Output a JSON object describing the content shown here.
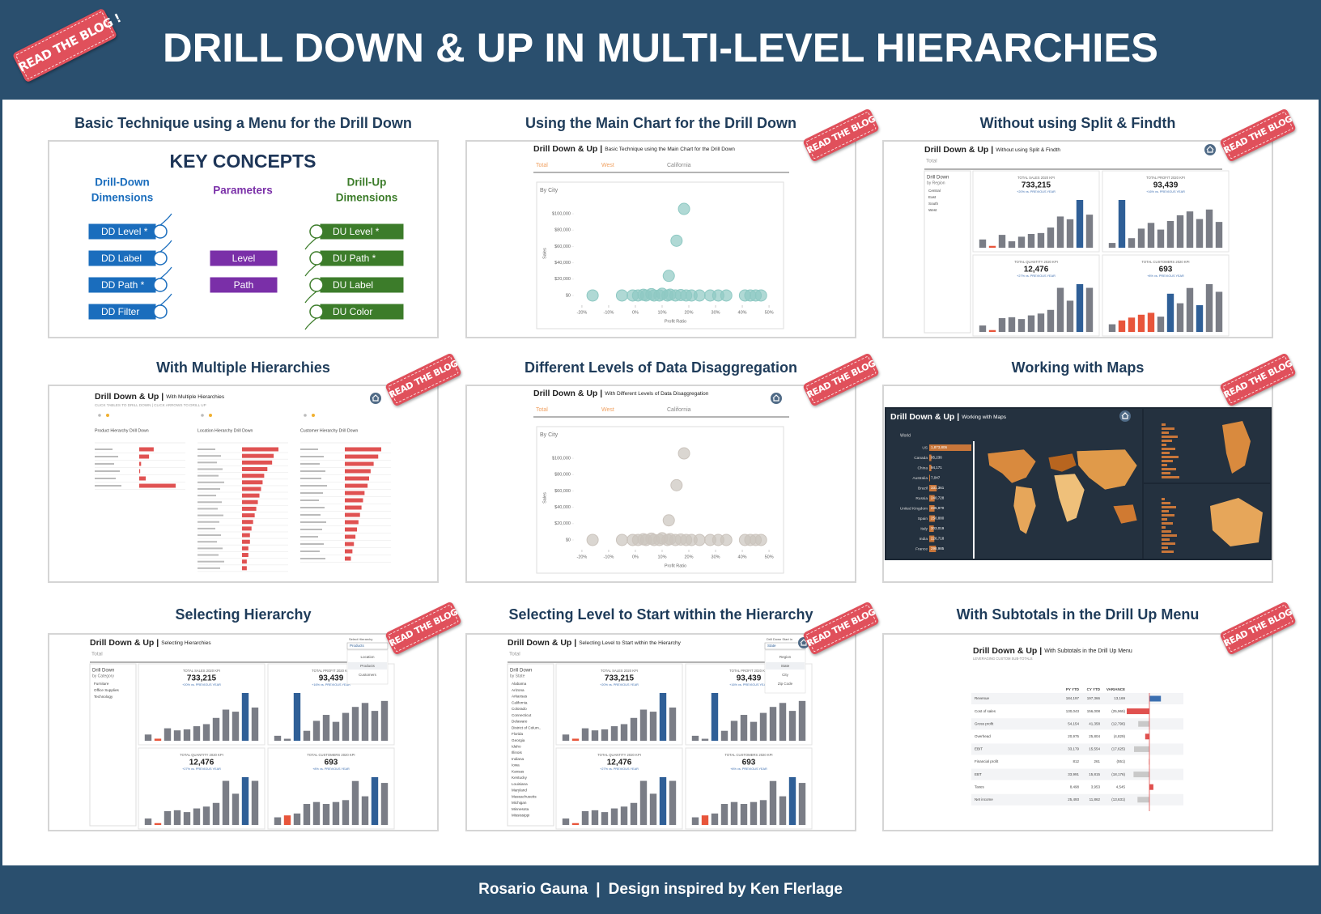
{
  "header": {
    "title": "DRILL DOWN & UP IN MULTI-LEVEL HIERARCHIES",
    "ribbon": "READ THE BLOG !"
  },
  "cards": [
    {
      "title": "Basic Technique using a Menu for the Drill Down",
      "kind": "concepts",
      "concepts": {
        "title": "KEY CONCEPTS",
        "groups": [
          {
            "lines": [
              "Drill-Down",
              "Dimensions"
            ],
            "color": "#1a6dbd",
            "items": [
              "DD Level *",
              "DD Label",
              "DD Path *",
              "DD Filter"
            ]
          },
          {
            "lines": [
              "Parameters"
            ],
            "color": "#7a2fa8",
            "items": [
              "Level",
              "Path"
            ]
          },
          {
            "lines": [
              "Drill-Up",
              "Dimensions"
            ],
            "color": "#3c7c2a",
            "items": [
              "DU Level *",
              "DU Path *",
              "DU Label",
              "DU Color"
            ]
          }
        ]
      }
    },
    {
      "title": "Using the Main Chart for the Drill Down",
      "ribbon": "READ THE BLOG !",
      "kind": "scatter",
      "home": false,
      "heading": "Drill Down & Up |",
      "subheading": "Basic Technique using the Main Chart for the Drill Down",
      "tabs": [
        "Total",
        "West",
        "California"
      ],
      "chart_data": {
        "type": "scatter",
        "title": "By City",
        "xlabel": "Profit Ratio",
        "ylabel": "Sales",
        "color": "#8ec9c3",
        "x": [
          18.2,
          15.4,
          12.5,
          -16,
          -5,
          -1,
          1,
          3,
          4,
          6,
          7,
          9,
          10,
          12,
          13,
          15,
          17,
          19,
          21,
          24,
          28,
          31,
          34,
          41,
          43,
          45,
          47
        ],
        "y": [
          106000,
          67000,
          24000,
          0,
          0,
          0,
          0,
          800,
          0,
          1500,
          0,
          0,
          2000,
          0,
          1000,
          0,
          500,
          0,
          0,
          0,
          0,
          0,
          0,
          0,
          0,
          0,
          0
        ],
        "xlim": [
          -23,
          53
        ],
        "ylim": [
          -6000,
          112000
        ],
        "xticks": [
          {
            "value": -20,
            "label": "-20%"
          },
          {
            "value": -10,
            "label": "-10%"
          },
          {
            "value": 0,
            "label": "0%"
          },
          {
            "value": 10,
            "label": "10%"
          },
          {
            "value": 20,
            "label": "20%"
          },
          {
            "value": 30,
            "label": "30%"
          },
          {
            "value": 40,
            "label": "40%"
          },
          {
            "value": 50,
            "label": "50%"
          }
        ],
        "yticks": [
          {
            "value": 0,
            "label": "$0"
          },
          {
            "value": 20000,
            "label": "$20,000"
          },
          {
            "value": 40000,
            "label": "$40,000"
          },
          {
            "value": 60000,
            "label": "$60,000"
          },
          {
            "value": 80000,
            "label": "$80,000"
          },
          {
            "value": 100000,
            "label": "$100,000"
          }
        ]
      }
    },
    {
      "title": "Without using Split & Findth",
      "ribbon": "READ THE BLOG !",
      "kind": "kpi",
      "home": true,
      "heading": "Drill Down & Up |",
      "subheading": "Without using Split & Findth",
      "tabs": [
        "Total"
      ],
      "side": {
        "title": "Drill Down",
        "subtitle": "by Region",
        "items": [
          "Central",
          "East",
          "South",
          "West"
        ]
      },
      "bar_color": "#7a7d86",
      "highlight_color": "#2f5f97",
      "alert_color": "#e8553b",
      "kpis": [
        {
          "label": "TOTAL SALES 2020 KPI",
          "value": "733,215",
          "note": "+20% vs. PREVIOUS YEAR",
          "bars": [
            9,
            2,
            14,
            7,
            12,
            15,
            16,
            22,
            34,
            31,
            52,
            36
          ],
          "alert": [
            1
          ],
          "highlight": [
            10
          ]
        },
        {
          "label": "TOTAL PROFIT 2020 KPI",
          "value": "93,439",
          "note": "+16% vs. PREVIOUS YEAR",
          "bars": [
            5,
            50,
            10,
            20,
            26,
            19,
            28,
            34,
            38,
            30,
            40,
            27
          ],
          "alert": [],
          "highlight": [
            1
          ]
        },
        {
          "label": "TOTAL QUANTITY 2020 KPI",
          "value": "12,476",
          "note": "+27% vs. PREVIOUS YEAR",
          "bars": [
            7,
            2,
            15,
            16,
            14,
            18,
            20,
            24,
            48,
            34,
            52,
            48
          ],
          "alert": [
            1
          ],
          "highlight": [
            10
          ]
        },
        {
          "label": "TOTAL CUSTOMERS 2020 KPI",
          "value": "693",
          "note": "+8% vs. PREVIOUS YEAR",
          "bars": [
            8,
            12,
            15,
            18,
            20,
            16,
            40,
            30,
            46,
            28,
            50,
            42
          ],
          "alert": [
            1,
            2,
            3,
            4
          ],
          "highlight": [
            6,
            9
          ]
        }
      ]
    },
    {
      "title": "With Multiple Hierarchies",
      "ribbon": "READ THE BLOG !",
      "kind": "multi",
      "home": true,
      "heading": "Drill Down & Up |",
      "subheading": "With Multiple Hierarchies",
      "instructions": "CLICK TABLES TO DRILL DOWN | CLICK ARROWS TO DRILL UP",
      "bar_color": "#e05252",
      "panels": [
        {
          "title": "Product Hierarchy Drill Down",
          "bars": [
            3.1,
            2.1,
            0.4,
            0.2,
            1.4,
            7.8
          ]
        },
        {
          "title": "Location Hierarchy Drill Down",
          "bars": [
            2.3,
            2.0,
            1.9,
            1.6,
            1.4,
            1.3,
            1.2,
            1.1,
            1.0,
            0.9,
            0.8,
            0.7,
            0.6,
            0.5,
            0.5,
            0.4,
            0.4,
            0.3,
            0.3
          ]
        },
        {
          "title": "Customer Hierarchy Drill Down",
          "bars": [
            2.4,
            2.2,
            1.9,
            1.7,
            1.6,
            1.5,
            1.3,
            1.2,
            1.1,
            1.0,
            0.9,
            0.8,
            0.7,
            0.6,
            0.5,
            0.4
          ]
        }
      ]
    },
    {
      "title": "Different Levels of Data Disaggregation",
      "ribbon": "READ THE BLOG !",
      "kind": "scatter",
      "home": true,
      "heading": "Drill Down & Up |",
      "subheading": "With Different Levels of Data Disaggregation",
      "tabs": [
        "Total",
        "West",
        "California"
      ],
      "chart_data": {
        "type": "scatter",
        "title": "By City",
        "xlabel": "Profit Ratio",
        "ylabel": "Sales",
        "color": "#cbc4bd",
        "x": [
          18.2,
          15.4,
          12.5,
          -16,
          -5,
          -1,
          1,
          3,
          4,
          6,
          7,
          9,
          10,
          12,
          13,
          15,
          17,
          19,
          21,
          24,
          28,
          31,
          34,
          41,
          43,
          45,
          47
        ],
        "y": [
          106000,
          67000,
          24000,
          0,
          0,
          0,
          0,
          800,
          0,
          1500,
          0,
          0,
          2000,
          0,
          1000,
          0,
          500,
          0,
          0,
          0,
          0,
          0,
          0,
          0,
          0,
          0,
          0
        ],
        "xlim": [
          -23,
          53
        ],
        "ylim": [
          -6000,
          112000
        ],
        "xticks": [
          {
            "value": -20,
            "label": "-20%"
          },
          {
            "value": -10,
            "label": "-10%"
          },
          {
            "value": 0,
            "label": "0%"
          },
          {
            "value": 10,
            "label": "10%"
          },
          {
            "value": 20,
            "label": "20%"
          },
          {
            "value": 30,
            "label": "30%"
          },
          {
            "value": 40,
            "label": "40%"
          },
          {
            "value": 50,
            "label": "50%"
          }
        ],
        "yticks": [
          {
            "value": 0,
            "label": "$0"
          },
          {
            "value": 20000,
            "label": "$20,000"
          },
          {
            "value": 40000,
            "label": "$40,000"
          },
          {
            "value": 60000,
            "label": "$60,000"
          },
          {
            "value": 80000,
            "label": "$80,000"
          },
          {
            "value": 100000,
            "label": "$100,000"
          }
        ]
      }
    },
    {
      "title": "Working with Maps",
      "ribbon": "READ THE BLOG !",
      "kind": "map",
      "heading": "Drill Down & Up |",
      "subheading": "Working with Maps",
      "level": "World",
      "bar_color": "#c8763a",
      "countries": [
        "US",
        "Canada",
        "China",
        "Australia",
        "Brazil",
        "Russia",
        "United Kingdom",
        "Spain",
        "Italy",
        "India",
        "France"
      ],
      "values": [
        1873806,
        95236,
        94171,
        7047,
        331361,
        240728,
        235970,
        250880,
        203019,
        226718,
        298985
      ],
      "value_labels": [
        "1,873,806",
        "95,236",
        "94,171",
        "7,047",
        "331,361",
        "240,728",
        "235,970",
        "250,880",
        "203,019",
        "226,718",
        "298,985"
      ]
    },
    {
      "title": "Selecting Hierarchy",
      "ribbon": "READ THE BLOG !",
      "kind": "kpi",
      "home": false,
      "heading": "Drill Down & Up |",
      "subheading": "Selecting Hierarchies",
      "tabs": [
        "Total"
      ],
      "selector": {
        "label": "Select Hierarchy",
        "value": "Products",
        "options": [
          "Location",
          "Products",
          "Customers"
        ]
      },
      "side": {
        "title": "Drill Down",
        "subtitle": "by Category",
        "items": [
          "Furniture",
          "Office Supplies",
          "Technology"
        ]
      },
      "bar_color": "#7a7d86",
      "highlight_color": "#2f5f97",
      "alert_color": "#e8553b",
      "kpis": [
        {
          "label": "TOTAL SALES 2020 KPI",
          "value": "733,215",
          "note": "+20% vs. PREVIOUS YEAR",
          "bars": [
            6,
            2,
            12,
            10,
            11,
            14,
            16,
            22,
            30,
            28,
            46,
            32
          ],
          "alert": [
            1
          ],
          "highlight": [
            10
          ]
        },
        {
          "label": "TOTAL PROFIT 2020 KPI",
          "value": "93,439",
          "note": "+16% vs. PREVIOUS YEAR",
          "bars": [
            5,
            2,
            48,
            10,
            20,
            26,
            19,
            28,
            34,
            38,
            30,
            40
          ],
          "alert": [],
          "highlight": [
            2
          ]
        },
        {
          "label": "TOTAL QUANTITY 2020 KPI",
          "value": "12,476",
          "note": "+27% vs. PREVIOUS YEAR",
          "bars": [
            7,
            2,
            15,
            16,
            14,
            18,
            20,
            24,
            48,
            34,
            52,
            48
          ],
          "alert": [
            1
          ],
          "highlight": [
            10
          ]
        },
        {
          "label": "TOTAL CUSTOMERS 2020 KPI",
          "value": "693",
          "note": "+8% vs. PREVIOUS YEAR",
          "bars": [
            8,
            10,
            12,
            22,
            24,
            22,
            24,
            26,
            46,
            30,
            50,
            44
          ],
          "alert": [
            1
          ],
          "highlight": [
            10
          ]
        }
      ]
    },
    {
      "title": "Selecting Level to Start within the Hierarchy",
      "ribbon": "READ THE BLOG !",
      "kind": "kpi",
      "home": true,
      "heading": "Drill Down & Up |",
      "subheading": "Selecting Level to Start within the Hierarchy",
      "tabs": [
        "Total"
      ],
      "selector": {
        "label": "Drill Down Start in",
        "value": "State",
        "options": [
          "Region",
          "State",
          "City",
          "Zip Code"
        ]
      },
      "side": {
        "title": "Drill Down",
        "subtitle": "by State",
        "items": [
          "Alabama",
          "Arizona",
          "Arkansas",
          "California",
          "Colorado",
          "Connecticut",
          "Delaware",
          "District of Colum..",
          "Florida",
          "Georgia",
          "Idaho",
          "Illinois",
          "Indiana",
          "Iowa",
          "Kansas",
          "Kentucky",
          "Louisiana",
          "Maryland",
          "Massachusetts",
          "Michigan",
          "Minnesota",
          "Mississippi"
        ]
      },
      "bar_color": "#7a7d86",
      "highlight_color": "#2f5f97",
      "alert_color": "#e8553b",
      "kpis": [
        {
          "label": "TOTAL SALES 2020 KPI",
          "value": "733,215",
          "note": "+20% vs. PREVIOUS YEAR",
          "bars": [
            6,
            2,
            12,
            10,
            11,
            14,
            16,
            22,
            30,
            28,
            46,
            32
          ],
          "alert": [
            1
          ],
          "highlight": [
            10
          ]
        },
        {
          "label": "TOTAL PROFIT 2020 KPI",
          "value": "93,439",
          "note": "+16% vs. PREVIOUS YEAR",
          "bars": [
            5,
            2,
            48,
            10,
            20,
            26,
            19,
            28,
            34,
            38,
            30,
            40
          ],
          "alert": [],
          "highlight": [
            2
          ]
        },
        {
          "label": "TOTAL QUANTITY 2020 KPI",
          "value": "12,476",
          "note": "+27% vs. PREVIOUS YEAR",
          "bars": [
            7,
            2,
            15,
            16,
            14,
            18,
            20,
            24,
            48,
            34,
            52,
            48
          ],
          "alert": [
            1
          ],
          "highlight": [
            10
          ]
        },
        {
          "label": "TOTAL CUSTOMERS 2020 KPI",
          "value": "693",
          "note": "+8% vs. PREVIOUS YEAR",
          "bars": [
            8,
            10,
            12,
            22,
            24,
            22,
            24,
            26,
            46,
            30,
            50,
            44
          ],
          "alert": [
            1
          ],
          "highlight": [
            10
          ]
        }
      ]
    },
    {
      "title": "With Subtotals in the Drill Up Menu",
      "ribbon": "READ THE BLOG !",
      "kind": "subtotals",
      "heading": "Drill Down & Up |",
      "subheading": "With Subtotals in the Drill Up Menu",
      "note": "LEVERAGING CUSTOM SUB-TOTALS",
      "columns": [
        "PY YTD",
        "CY YTD",
        "VARIANCE"
      ],
      "rows": [
        {
          "name": "Revenue",
          "py": "184,197",
          "cy": "197,366",
          "variance": 13169,
          "variance_label": "13,169",
          "color": "#3b6fb0"
        },
        {
          "name": "Cost of sales",
          "py": "130,043",
          "cy": "156,008",
          "variance": -25965,
          "variance_label": "(25,965)",
          "color": "#e0504e"
        },
        {
          "name": "Gross profit",
          "py": "54,154",
          "cy": "41,358",
          "variance": -12796,
          "variance_label": "(12,796)",
          "color": "#c9c9c9"
        },
        {
          "name": "Overhead",
          "py": "20,975",
          "cy": "25,804",
          "variance": -4829,
          "variance_label": "(4,829)",
          "color": "#e0504e"
        },
        {
          "name": "EBIT",
          "py": "33,179",
          "cy": "15,554",
          "variance": -17625,
          "variance_label": "(17,625)",
          "color": "#c9c9c9"
        },
        {
          "name": "Financial profit",
          "py": "812",
          "cy": "261",
          "variance": -551,
          "variance_label": "(551)",
          "color": "#e0504e"
        },
        {
          "name": "EBT",
          "py": "33,991",
          "cy": "15,815",
          "variance": -18176,
          "variance_label": "(18,176)",
          "color": "#c9c9c9"
        },
        {
          "name": "Taxes",
          "py": "8,498",
          "cy": "3,953",
          "variance": 4545,
          "variance_label": "4,545",
          "color": "#e0504e"
        },
        {
          "name": "Net income",
          "py": "25,493",
          "cy": "11,862",
          "variance": -13631,
          "variance_label": "(13,631)",
          "color": "#c9c9c9"
        }
      ]
    }
  ],
  "footer": {
    "author": "Rosario Gauna",
    "separator": "|",
    "credit": "Design inspired by Ken Flerlage"
  }
}
